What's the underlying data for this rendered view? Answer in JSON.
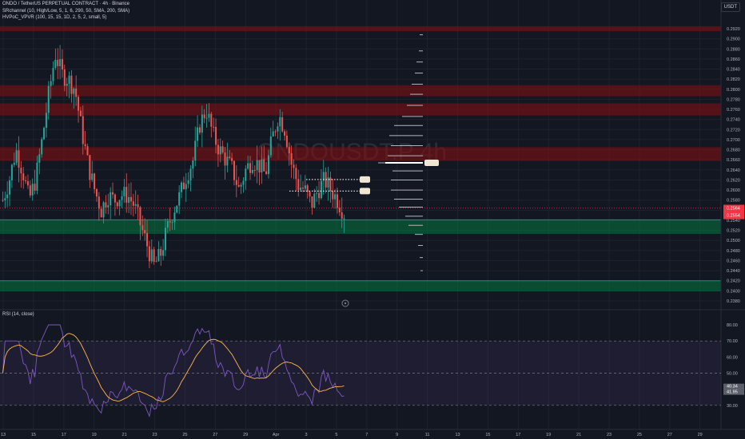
{
  "header": {
    "title": "ONDO / TetherUS PERPETUAL CONTRACT · 4h · Binance",
    "indicator1": "SRchannel (10, High/Low, 5, 1, 6, 290, 50, SMA, 200, SMA)",
    "indicator2": "HVPoC_VPVR (100, 15, 15, 1D, 2, 5, 2, small, 5)",
    "currency": "USDT",
    "watermark": "ONDOUSDT.P 4h"
  },
  "rsi": {
    "label": "RSI (14, close)",
    "value": "40.34",
    "ma_value": "41.95"
  },
  "price": {
    "last": "0.2554",
    "prev": "0.2564"
  },
  "colors": {
    "bg": "#131722",
    "up": "#26a69a",
    "down": "#ef5350",
    "red_zone": "rgba(136,14,14,0.55)",
    "green_zone": "rgba(0,140,70,0.45)",
    "rsi_line": "#7e57c2",
    "rsi_ma": "#ffb74d"
  },
  "chart_data": {
    "type": "candlestick",
    "price_ticks": [
      0.292,
      0.29,
      0.288,
      0.286,
      0.284,
      0.282,
      0.28,
      0.278,
      0.276,
      0.274,
      0.272,
      0.27,
      0.268,
      0.266,
      0.264,
      0.262,
      0.26,
      0.258,
      0.256,
      0.254,
      0.252,
      0.25,
      0.248,
      0.246,
      0.244,
      0.242,
      0.24,
      0.238
    ],
    "price_tick_labels": [
      "0.2920",
      "0.2900",
      "0.2880",
      "0.2860",
      "0.2840",
      "0.2820",
      "0.2800",
      "0.2780",
      "0.2760",
      "0.2740",
      "0.2720",
      "0.2700",
      "0.2680",
      "0.2660",
      "0.2640",
      "0.2620",
      "0.2600",
      "0.2580",
      "0.2560",
      "0.2540",
      "0.2520",
      "0.2500",
      "0.2480",
      "0.2460",
      "0.2440",
      "0.2420",
      "0.2400",
      "0.2380"
    ],
    "x_labels": [
      "13",
      "15",
      "17",
      "19",
      "21",
      "23",
      "25",
      "27",
      "29",
      "Apr",
      "3",
      "5",
      "7",
      "9",
      "11",
      "13",
      "15",
      "17",
      "19",
      "21",
      "23",
      "25",
      "27",
      "29"
    ],
    "resistance_zones": [
      [
        0.2915,
        0.2925
      ],
      [
        0.2786,
        0.2808
      ],
      [
        0.2748,
        0.2772
      ],
      [
        0.2658,
        0.2685
      ]
    ],
    "support_zones": [
      [
        0.2513,
        0.2541
      ],
      [
        0.2399,
        0.242
      ]
    ],
    "rsi_ticks": [
      80,
      70,
      60,
      50,
      40,
      30
    ],
    "rsi_tick_labels": [
      "80.00",
      "70.00",
      "60.00",
      "50.00",
      "40.00",
      "30.00"
    ],
    "rsi_bands": {
      "upper": 70,
      "middle": 50,
      "lower": 30
    },
    "close_path": [
      0.258,
      0.262,
      0.268,
      0.264,
      0.258,
      0.262,
      0.27,
      0.279,
      0.287,
      0.283,
      0.282,
      0.28,
      0.272,
      0.265,
      0.26,
      0.256,
      0.259,
      0.258,
      0.259,
      0.259,
      0.257,
      0.253,
      0.249,
      0.245,
      0.247,
      0.252,
      0.256,
      0.259,
      0.263,
      0.266,
      0.273,
      0.276,
      0.271,
      0.268,
      0.266,
      0.264,
      0.26,
      0.264,
      0.266,
      0.265,
      0.263,
      0.27,
      0.275,
      0.272,
      0.265,
      0.261,
      0.26,
      0.257,
      0.26,
      0.262,
      0.26,
      0.258,
      0.2554
    ]
  }
}
